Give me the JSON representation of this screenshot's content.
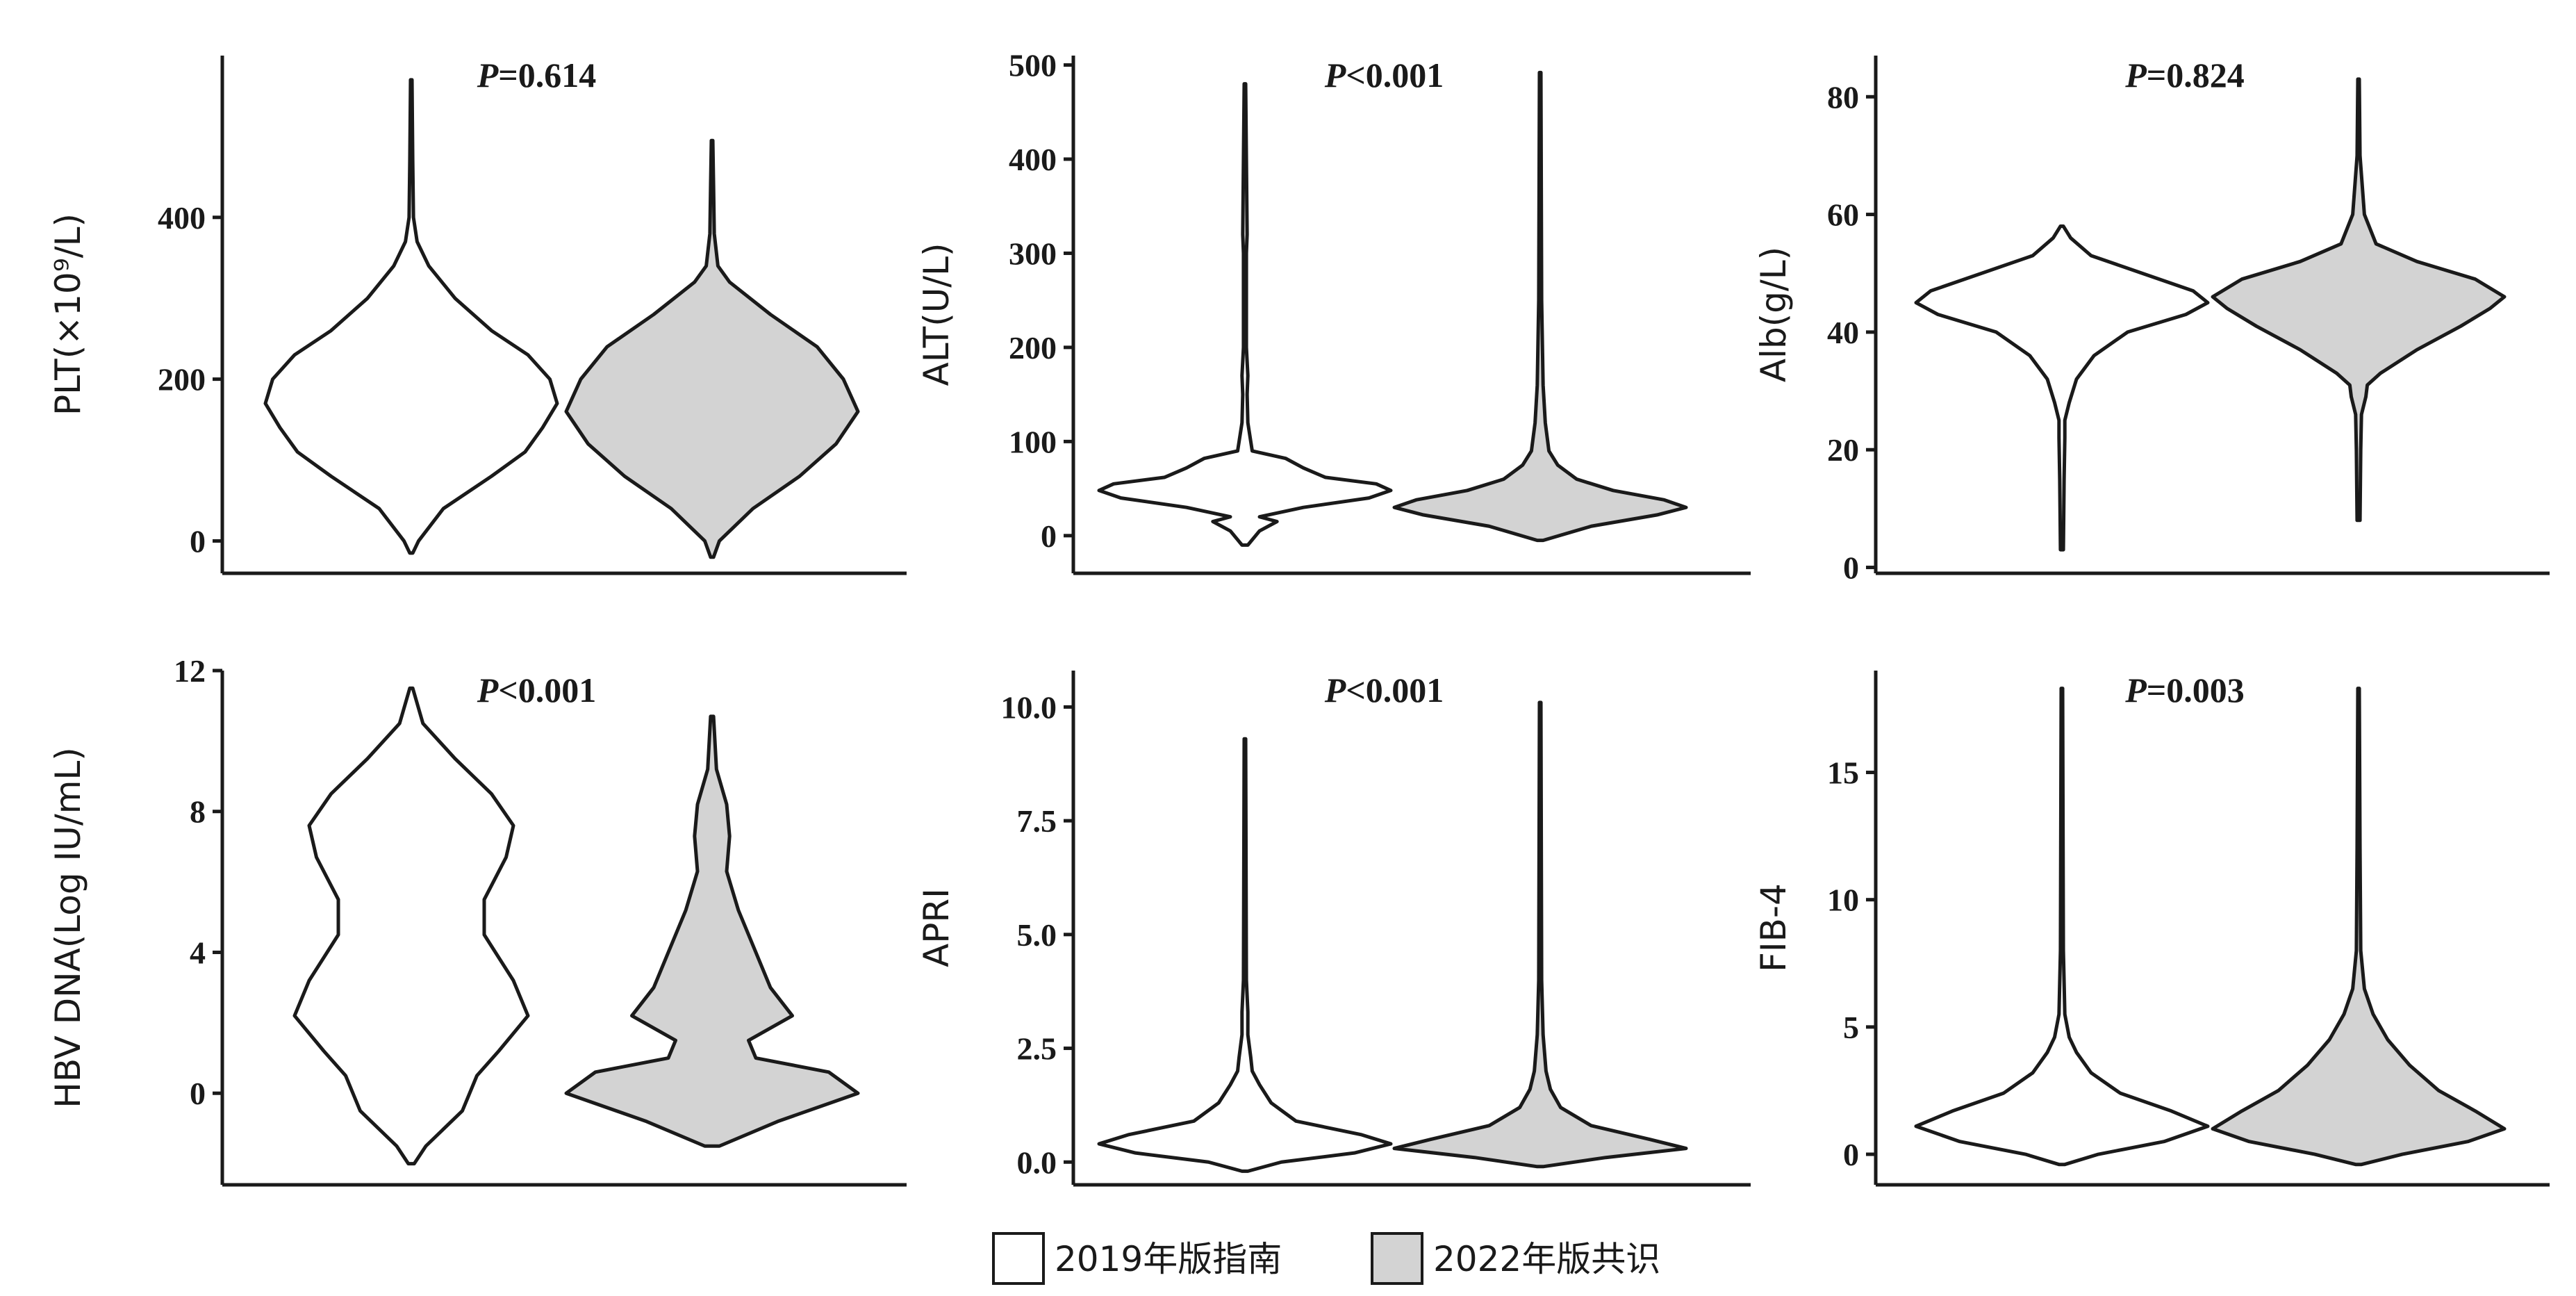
{
  "legend": {
    "items": [
      {
        "label": "2019年版指南",
        "fill": "#ffffff"
      },
      {
        "label": "2022年版共识",
        "fill": "#d3d3d3"
      }
    ]
  },
  "colors": {
    "outline": "#1a1a1a",
    "group1_fill": "#ffffff",
    "group2_fill": "#d3d3d3"
  },
  "chart_data": [
    {
      "type": "violin",
      "ylabel": "PLT(×10⁹/L)",
      "annotation": "P=0.614",
      "ylim": [
        -40,
        600
      ],
      "yticks": [
        0,
        200,
        400
      ],
      "series": [
        {
          "name": "2019年版指南",
          "min": -15,
          "max": 570,
          "density": [
            [
              -15,
              0.01
            ],
            [
              0,
              0.05
            ],
            [
              40,
              0.22
            ],
            [
              80,
              0.55
            ],
            [
              110,
              0.78
            ],
            [
              140,
              0.9
            ],
            [
              170,
              1.0
            ],
            [
              200,
              0.95
            ],
            [
              230,
              0.8
            ],
            [
              260,
              0.55
            ],
            [
              300,
              0.3
            ],
            [
              340,
              0.12
            ],
            [
              370,
              0.04
            ],
            [
              400,
              0.015
            ],
            [
              470,
              0.01
            ],
            [
              570,
              0.005
            ]
          ]
        },
        {
          "name": "2022年版共识",
          "min": -20,
          "max": 495,
          "density": [
            [
              -20,
              0.01
            ],
            [
              0,
              0.05
            ],
            [
              40,
              0.28
            ],
            [
              80,
              0.6
            ],
            [
              120,
              0.85
            ],
            [
              160,
              1.0
            ],
            [
              200,
              0.9
            ],
            [
              240,
              0.72
            ],
            [
              280,
              0.4
            ],
            [
              320,
              0.12
            ],
            [
              340,
              0.04
            ],
            [
              380,
              0.015
            ],
            [
              440,
              0.01
            ],
            [
              495,
              0.005
            ]
          ]
        }
      ]
    },
    {
      "type": "violin",
      "ylabel": "ALT(U/L)",
      "annotation": "P<0.001",
      "ylim": [
        -40,
        510
      ],
      "yticks": [
        0,
        100,
        200,
        300,
        400,
        500
      ],
      "series": [
        {
          "name": "2019年版指南",
          "min": -10,
          "max": 480,
          "density": [
            [
              -10,
              0.02
            ],
            [
              5,
              0.1
            ],
            [
              15,
              0.22
            ],
            [
              20,
              0.1
            ],
            [
              30,
              0.4
            ],
            [
              40,
              0.85
            ],
            [
              48,
              1.0
            ],
            [
              55,
              0.9
            ],
            [
              62,
              0.55
            ],
            [
              72,
              0.4
            ],
            [
              82,
              0.28
            ],
            [
              90,
              0.05
            ],
            [
              120,
              0.02
            ],
            [
              150,
              0.015
            ],
            [
              170,
              0.02
            ],
            [
              200,
              0.01
            ],
            [
              300,
              0.01
            ],
            [
              320,
              0.015
            ],
            [
              480,
              0.005
            ]
          ]
        },
        {
          "name": "2022年版共识",
          "min": -5,
          "max": 492,
          "density": [
            [
              -5,
              0.02
            ],
            [
              10,
              0.35
            ],
            [
              22,
              0.8
            ],
            [
              30,
              1.0
            ],
            [
              38,
              0.85
            ],
            [
              48,
              0.5
            ],
            [
              60,
              0.25
            ],
            [
              75,
              0.12
            ],
            [
              90,
              0.06
            ],
            [
              120,
              0.035
            ],
            [
              160,
              0.02
            ],
            [
              250,
              0.01
            ],
            [
              492,
              0.005
            ]
          ]
        }
      ]
    },
    {
      "type": "violin",
      "ylabel": "Alb(g/L)",
      "annotation": "P=0.824",
      "ylim": [
        -1,
        87
      ],
      "yticks": [
        0,
        20,
        40,
        60,
        80
      ],
      "series": [
        {
          "name": "2019年版指南",
          "min": 3,
          "max": 58,
          "density": [
            [
              3,
              0.01
            ],
            [
              15,
              0.015
            ],
            [
              22,
              0.02
            ],
            [
              25,
              0.02
            ],
            [
              28,
              0.05
            ],
            [
              32,
              0.1
            ],
            [
              36,
              0.22
            ],
            [
              40,
              0.45
            ],
            [
              43,
              0.85
            ],
            [
              45,
              1.0
            ],
            [
              47,
              0.9
            ],
            [
              50,
              0.55
            ],
            [
              53,
              0.2
            ],
            [
              56,
              0.06
            ],
            [
              58,
              0.01
            ]
          ]
        },
        {
          "name": "2022年版共识",
          "min": 8,
          "max": 83,
          "density": [
            [
              8,
              0.01
            ],
            [
              20,
              0.015
            ],
            [
              26,
              0.02
            ],
            [
              29,
              0.05
            ],
            [
              31,
              0.06
            ],
            [
              33,
              0.15
            ],
            [
              37,
              0.4
            ],
            [
              41,
              0.7
            ],
            [
              44,
              0.9
            ],
            [
              46,
              1.0
            ],
            [
              49,
              0.8
            ],
            [
              52,
              0.4
            ],
            [
              55,
              0.12
            ],
            [
              60,
              0.04
            ],
            [
              70,
              0.01
            ],
            [
              83,
              0.005
            ]
          ]
        }
      ]
    },
    {
      "type": "violin",
      "ylabel": "HBV DNA(Log IU/mL)",
      "annotation": "P<0.001",
      "ylim": [
        -2.6,
        12
      ],
      "yticks": [
        0,
        4,
        8,
        12
      ],
      "series": [
        {
          "name": "2019年版指南",
          "min": -2,
          "max": 11.5,
          "density": [
            [
              -2,
              0.02
            ],
            [
              -1.5,
              0.1
            ],
            [
              -0.5,
              0.35
            ],
            [
              0.5,
              0.45
            ],
            [
              1.2,
              0.6
            ],
            [
              2.2,
              0.8
            ],
            [
              3.2,
              0.7
            ],
            [
              4.5,
              0.5
            ],
            [
              5.5,
              0.5
            ],
            [
              6.7,
              0.65
            ],
            [
              7.6,
              0.7
            ],
            [
              8.5,
              0.55
            ],
            [
              9.5,
              0.3
            ],
            [
              10.5,
              0.08
            ],
            [
              11.5,
              0.01
            ]
          ]
        },
        {
          "name": "2022年版共识",
          "min": -1.5,
          "max": 10.7,
          "density": [
            [
              -1.5,
              0.05
            ],
            [
              -0.8,
              0.45
            ],
            [
              0,
              1.0
            ],
            [
              0.6,
              0.8
            ],
            [
              1.0,
              0.3
            ],
            [
              1.5,
              0.25
            ],
            [
              2.2,
              0.55
            ],
            [
              3.0,
              0.4
            ],
            [
              4.0,
              0.3
            ],
            [
              5.2,
              0.18
            ],
            [
              6.3,
              0.1
            ],
            [
              7.3,
              0.12
            ],
            [
              8.2,
              0.1
            ],
            [
              9.2,
              0.03
            ],
            [
              10.7,
              0.01
            ]
          ]
        }
      ]
    },
    {
      "type": "violin",
      "ylabel": "APRI",
      "annotation": "P<0.001",
      "ylim": [
        -0.5,
        10.8
      ],
      "yticks": [
        0.0,
        2.5,
        5.0,
        7.5,
        10.0
      ],
      "ytick_labels": [
        "0.0",
        "2.5",
        "5.0",
        "7.5",
        "10.0"
      ],
      "series": [
        {
          "name": "2019年版指南",
          "min": -0.2,
          "max": 9.3,
          "density": [
            [
              -0.2,
              0.02
            ],
            [
              0,
              0.25
            ],
            [
              0.2,
              0.75
            ],
            [
              0.4,
              1.0
            ],
            [
              0.6,
              0.8
            ],
            [
              0.9,
              0.35
            ],
            [
              1.3,
              0.18
            ],
            [
              1.7,
              0.1
            ],
            [
              2.0,
              0.05
            ],
            [
              2.3,
              0.04
            ],
            [
              2.8,
              0.02
            ],
            [
              3.3,
              0.02
            ],
            [
              4,
              0.01
            ],
            [
              9.3,
              0.005
            ]
          ]
        },
        {
          "name": "2022年版共识",
          "min": -0.1,
          "max": 10.1,
          "density": [
            [
              -0.1,
              0.02
            ],
            [
              0.1,
              0.45
            ],
            [
              0.3,
              1.0
            ],
            [
              0.5,
              0.75
            ],
            [
              0.8,
              0.35
            ],
            [
              1.2,
              0.14
            ],
            [
              1.6,
              0.07
            ],
            [
              2.0,
              0.04
            ],
            [
              2.8,
              0.02
            ],
            [
              4,
              0.01
            ],
            [
              10.1,
              0.005
            ]
          ]
        }
      ]
    },
    {
      "type": "violin",
      "ylabel": "FIB-4",
      "annotation": "P=0.003",
      "ylim": [
        -1.2,
        19
      ],
      "yticks": [
        0,
        5,
        10,
        15
      ],
      "series": [
        {
          "name": "2019年版指南",
          "min": -0.4,
          "max": 18.3,
          "density": [
            [
              -0.4,
              0.02
            ],
            [
              0,
              0.25
            ],
            [
              0.5,
              0.7
            ],
            [
              1.1,
              1.0
            ],
            [
              1.7,
              0.75
            ],
            [
              2.4,
              0.4
            ],
            [
              3.2,
              0.2
            ],
            [
              4,
              0.1
            ],
            [
              4.6,
              0.05
            ],
            [
              5.5,
              0.02
            ],
            [
              8,
              0.01
            ],
            [
              18.3,
              0.005
            ]
          ]
        },
        {
          "name": "2022年版共识",
          "min": -0.4,
          "max": 18.3,
          "density": [
            [
              -0.4,
              0.02
            ],
            [
              0,
              0.3
            ],
            [
              0.5,
              0.75
            ],
            [
              1.0,
              1.0
            ],
            [
              1.7,
              0.8
            ],
            [
              2.5,
              0.55
            ],
            [
              3.5,
              0.35
            ],
            [
              4.5,
              0.2
            ],
            [
              5.5,
              0.1
            ],
            [
              6.5,
              0.04
            ],
            [
              8,
              0.015
            ],
            [
              12,
              0.01
            ],
            [
              18.3,
              0.005
            ]
          ]
        }
      ]
    }
  ]
}
